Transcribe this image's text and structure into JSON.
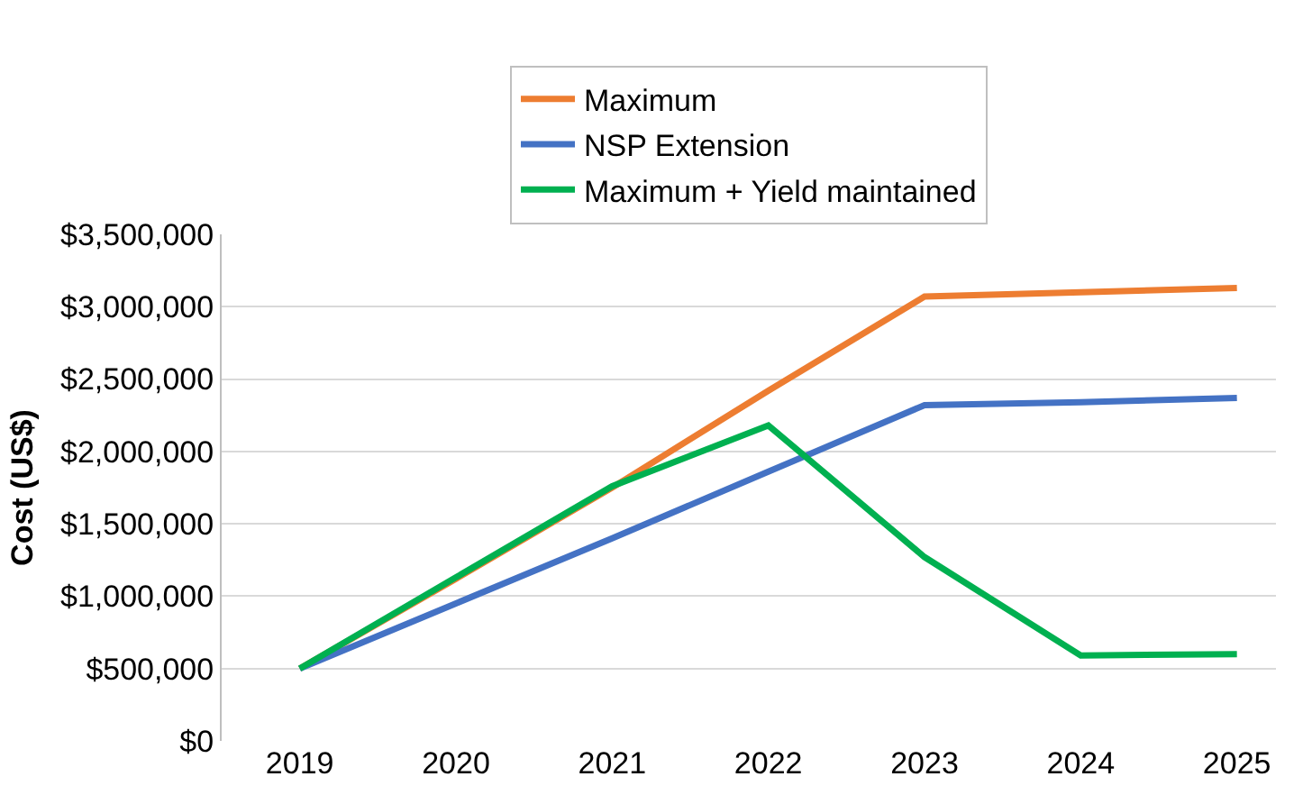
{
  "chart_data": {
    "type": "line",
    "ylabel": "Cost (US$)",
    "categories": [
      "2019",
      "2020",
      "2021",
      "2022",
      "2023",
      "2024",
      "2025"
    ],
    "series": [
      {
        "name": "Maximum",
        "color": "#ed7d31",
        "values": [
          500000,
          1120000,
          1750000,
          2420000,
          3070000,
          3100000,
          3130000
        ]
      },
      {
        "name": "NSP Extension",
        "color": "#4472c4",
        "values": [
          500000,
          950000,
          1400000,
          1860000,
          2320000,
          2340000,
          2370000
        ]
      },
      {
        "name": "Maximum + Yield maintained",
        "color": "#00b050",
        "values": [
          500000,
          1130000,
          1760000,
          2180000,
          1270000,
          590000,
          600000
        ]
      }
    ],
    "ylim": [
      0,
      3500000
    ],
    "yticks": [
      {
        "value": 0,
        "label": "$0"
      },
      {
        "value": 500000,
        "label": "$500,000"
      },
      {
        "value": 1000000,
        "label": "$1,000,000"
      },
      {
        "value": 1500000,
        "label": "$1,500,000"
      },
      {
        "value": 2000000,
        "label": "$2,000,000"
      },
      {
        "value": 2500000,
        "label": "$2,500,000"
      },
      {
        "value": 3000000,
        "label": "$3,000,000"
      },
      {
        "value": 3500000,
        "label": "$3,500,000"
      }
    ],
    "grid": "y",
    "legend": "top",
    "marker": "none",
    "line_style": "solid"
  }
}
